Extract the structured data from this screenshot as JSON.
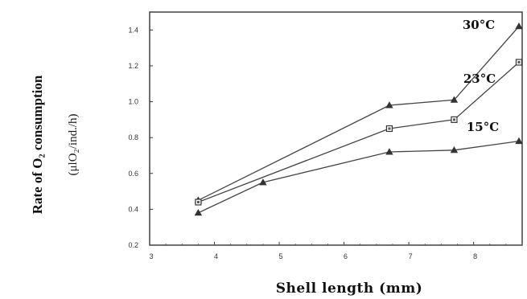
{
  "chart_data": {
    "type": "line",
    "xlabel": "Shell length (mm)",
    "ylabel": "Rate of O₂ consumption",
    "yunit": "(μlO₂/ind./h)",
    "xlim": [
      3,
      8.75
    ],
    "ylim": [
      0.2,
      1.5
    ],
    "xticks": [
      "3",
      "4",
      "5",
      "6",
      "7",
      "8"
    ],
    "yticks": [
      "0.2",
      "0.4",
      "0.6",
      "0.8",
      "1.0",
      "1.2",
      "1.4"
    ],
    "grid": false,
    "series": [
      {
        "name": "30°C",
        "marker": "triangle",
        "x": [
          3.75,
          6.7,
          7.7,
          8.7
        ],
        "y": [
          0.45,
          0.98,
          1.01,
          1.42
        ]
      },
      {
        "name": "23°C",
        "marker": "square",
        "x": [
          3.75,
          6.7,
          7.7,
          8.7
        ],
        "y": [
          0.44,
          0.85,
          0.9,
          1.22
        ]
      },
      {
        "name": "15°C",
        "marker": "triangle",
        "x": [
          3.75,
          4.75,
          6.7,
          7.7,
          8.7
        ],
        "y": [
          0.38,
          0.55,
          0.72,
          0.73,
          0.78
        ]
      }
    ]
  }
}
